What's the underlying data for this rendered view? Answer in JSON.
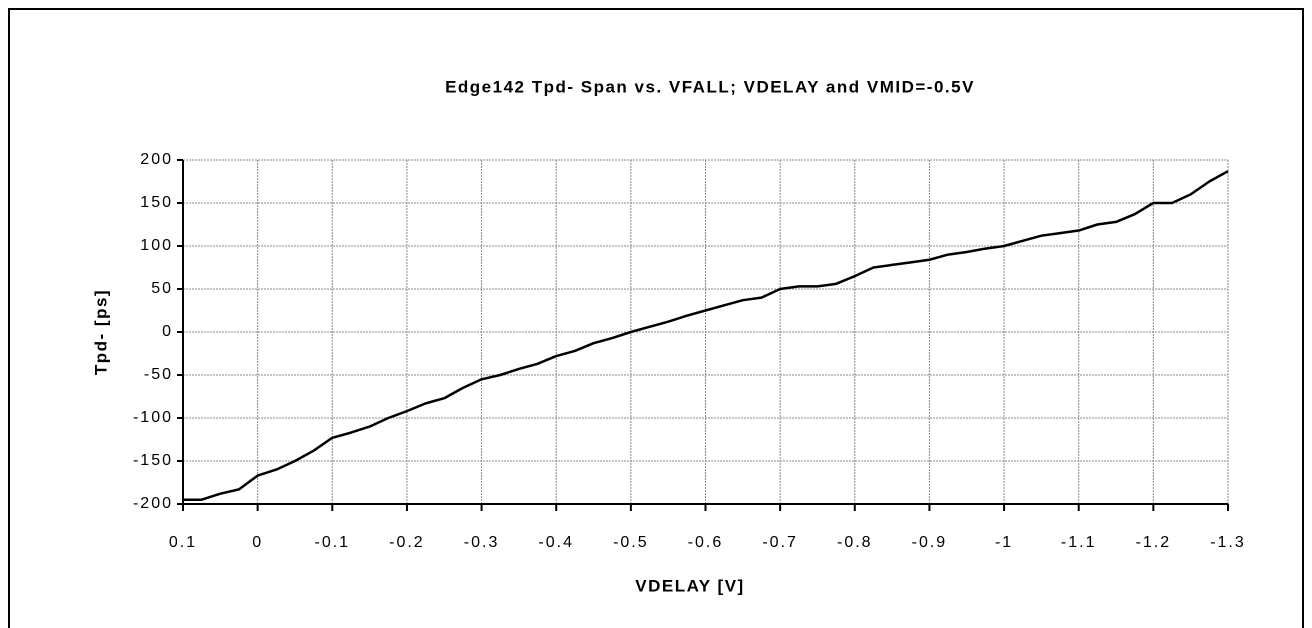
{
  "chart_data": {
    "type": "line",
    "title": "Edge142 Tpd- Span vs. VFALL; VDELAY and VMID=-0.5V",
    "x_label": "VDELAY [V]",
    "y_label": "Tpd- [ps]",
    "x": [
      0.1,
      0.075,
      0.05,
      0.025,
      0,
      -0.025,
      -0.05,
      -0.075,
      -0.1,
      -0.125,
      -0.15,
      -0.175,
      -0.2,
      -0.225,
      -0.25,
      -0.275,
      -0.3,
      -0.325,
      -0.35,
      -0.375,
      -0.4,
      -0.425,
      -0.45,
      -0.475,
      -0.5,
      -0.525,
      -0.55,
      -0.575,
      -0.6,
      -0.625,
      -0.65,
      -0.675,
      -0.7,
      -0.725,
      -0.75,
      -0.775,
      -0.8,
      -0.825,
      -0.85,
      -0.875,
      -0.9,
      -0.925,
      -0.95,
      -0.975,
      -1,
      -1.025,
      -1.05,
      -1.075,
      -1.1,
      -1.125,
      -1.15,
      -1.175,
      -1.2,
      -1.225,
      -1.25,
      -1.275,
      -1.3
    ],
    "series": [
      {
        "color": "#000000",
        "values": [
          -195,
          -195,
          -188,
          -183,
          -167,
          -160,
          -150,
          -138,
          -123,
          -117,
          -110,
          -100,
          -92,
          -83,
          -77,
          -65,
          -55,
          -50,
          -43,
          -37,
          -28,
          -22,
          -13,
          -7,
          0,
          6,
          12,
          19,
          25,
          31,
          37,
          40,
          50,
          53,
          53,
          56,
          65,
          75,
          78,
          81,
          84,
          90,
          93,
          97,
          100,
          106,
          112,
          115,
          118,
          125,
          128,
          137,
          150,
          150,
          160,
          175,
          187
        ]
      }
    ],
    "xlim": [
      0.1,
      -1.3
    ],
    "xticks": [
      0.1,
      0,
      -0.1,
      -0.2,
      -0.3,
      -0.4,
      -0.5,
      -0.6,
      -0.7,
      -0.8,
      -0.9,
      -1,
      -1.1,
      -1.2,
      -1.3
    ],
    "ylim": [
      -200,
      200
    ],
    "yticks": [
      -200,
      -150,
      -100,
      -50,
      0,
      50,
      100,
      150,
      200
    ],
    "grid": true
  }
}
